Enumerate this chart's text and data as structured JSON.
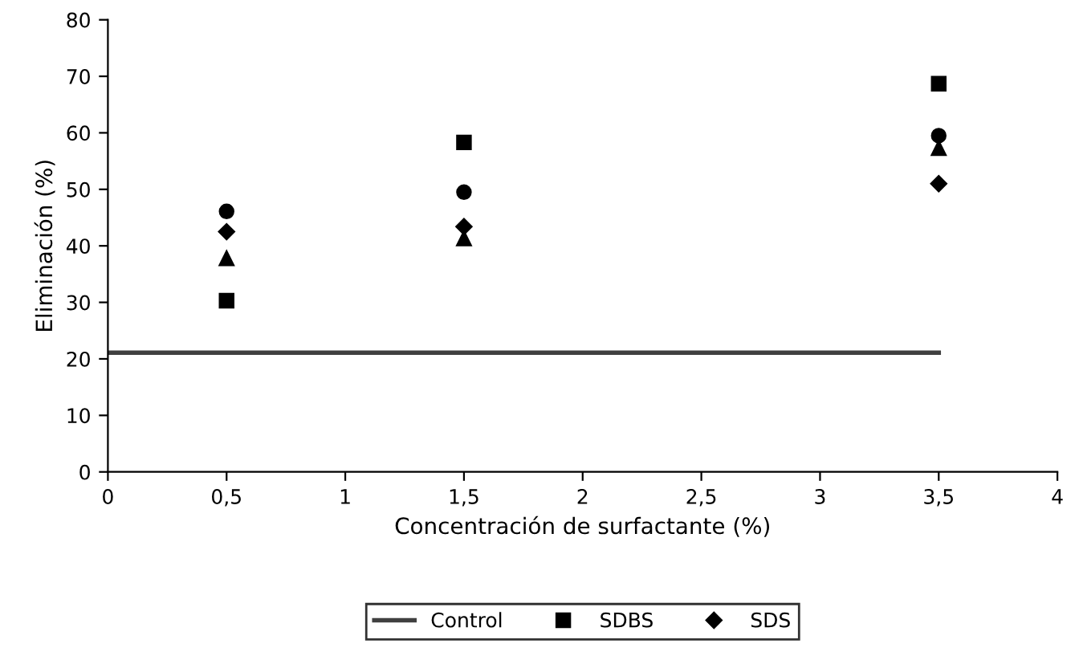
{
  "chart_data": {
    "type": "scatter",
    "xlabel": "Concentración de surfactante (%)",
    "ylabel": "Eliminación (%)",
    "xlim": [
      0,
      4
    ],
    "xticks": [
      0,
      {
        "value": 0.5,
        "label": "0,5"
      },
      1,
      {
        "value": 1.5,
        "label": "1,5"
      },
      2,
      {
        "value": 2.5,
        "label": "2,5"
      },
      3,
      {
        "value": 3.5,
        "label": "3,5"
      },
      4
    ],
    "ylim": [
      0,
      80
    ],
    "yticks": [
      0,
      10,
      20,
      30,
      40,
      50,
      60,
      70,
      80
    ],
    "grid": false,
    "legend": "bottom",
    "series": [
      {
        "name": "Control",
        "type": "line",
        "color": "#404040",
        "x": [
          0,
          3.5
        ],
        "values": [
          21.1,
          21.1
        ],
        "marker": "none",
        "line_style": "solid"
      },
      {
        "type": "scatter",
        "color": "#000000",
        "marker": "circle",
        "x": [
          0.5,
          1.5,
          3.5
        ],
        "values": [
          46.1,
          49.5,
          59.5
        ]
      },
      {
        "name": "SDBS",
        "type": "scatter",
        "color": "#000000",
        "marker": "square",
        "x": [
          0.5,
          1.5,
          3.5
        ],
        "values": [
          30.3,
          58.3,
          68.7
        ]
      },
      {
        "name": "SDS",
        "type": "scatter",
        "color": "#000000",
        "marker": "diamond",
        "x": [
          0.5,
          1.5,
          3.5
        ],
        "values": [
          42.5,
          43.4,
          51.0
        ]
      },
      {
        "type": "scatter",
        "color": "#000000",
        "marker": "triangle",
        "x": [
          0.5,
          1.5,
          3.5
        ],
        "values": [
          37.8,
          41.3,
          57.3
        ]
      }
    ]
  }
}
